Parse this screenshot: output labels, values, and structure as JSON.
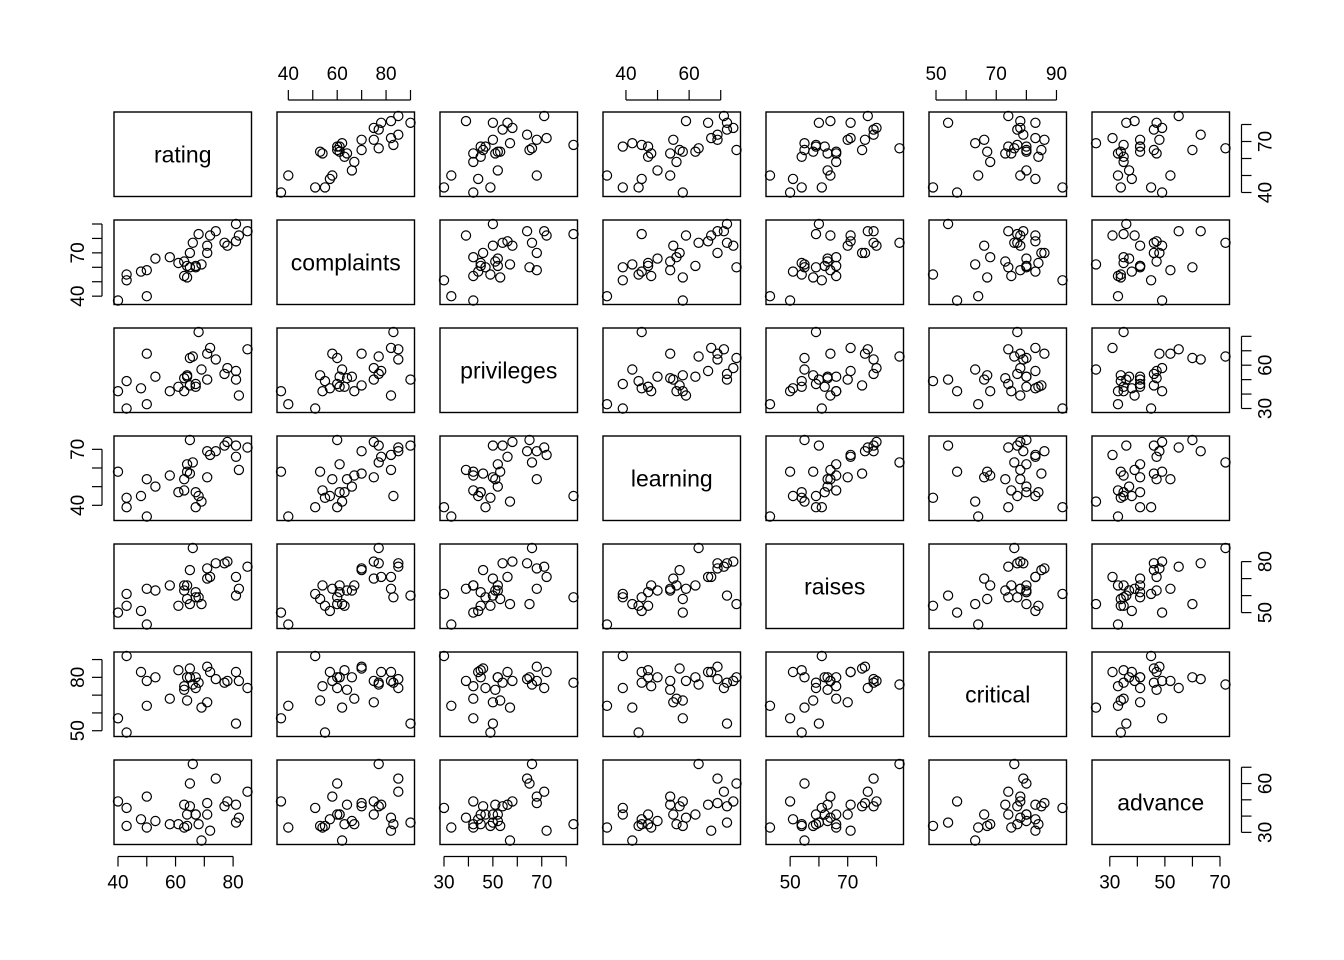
{
  "chart_data": {
    "type": "scatter",
    "variables": [
      "rating",
      "complaints",
      "privileges",
      "learning",
      "raises",
      "critical",
      "advance"
    ],
    "ranges": {
      "rating": [
        40,
        85
      ],
      "complaints": [
        37,
        90
      ],
      "privileges": [
        30,
        83
      ],
      "learning": [
        34,
        75
      ],
      "raises": [
        43,
        88
      ],
      "critical": [
        49,
        92
      ],
      "advance": [
        25,
        72
      ]
    },
    "axis_ticks": {
      "top": {
        "complaints": [
          "40",
          "60",
          "80"
        ],
        "learning": [
          "40",
          "60"
        ],
        "critical": [
          "50",
          "70",
          "90"
        ]
      },
      "bottom": {
        "rating": [
          "40",
          "60",
          "80"
        ],
        "privileges": [
          "30",
          "50",
          "70"
        ],
        "raises": [
          "50",
          "70"
        ],
        "advance": [
          "30",
          "50",
          "70"
        ]
      },
      "left": {
        "complaints": [
          "40",
          "70"
        ],
        "learning": [
          "40",
          "70"
        ],
        "critical": [
          "50",
          "80"
        ]
      },
      "right": {
        "rating": [
          "40",
          "70"
        ],
        "privileges": [
          "30",
          "60"
        ],
        "raises": [
          "50",
          "80"
        ],
        "advance": [
          "30",
          "60"
        ]
      }
    },
    "observations": [
      [
        43,
        51,
        30,
        39,
        61,
        92,
        45
      ],
      [
        63,
        64,
        51,
        54,
        63,
        73,
        47
      ],
      [
        71,
        70,
        68,
        69,
        76,
        86,
        48
      ],
      [
        61,
        63,
        45,
        47,
        54,
        84,
        35
      ],
      [
        81,
        78,
        56,
        66,
        71,
        83,
        47
      ],
      [
        43,
        55,
        49,
        44,
        54,
        49,
        34
      ],
      [
        58,
        67,
        42,
        56,
        66,
        68,
        35
      ],
      [
        71,
        75,
        50,
        55,
        70,
        66,
        41
      ],
      [
        72,
        82,
        72,
        67,
        71,
        83,
        31
      ],
      [
        67,
        61,
        45,
        47,
        62,
        80,
        41
      ],
      [
        64,
        53,
        53,
        58,
        58,
        67,
        34
      ],
      [
        67,
        60,
        47,
        39,
        59,
        74,
        41
      ],
      [
        69,
        62,
        57,
        42,
        55,
        63,
        25
      ],
      [
        68,
        83,
        83,
        45,
        59,
        77,
        35
      ],
      [
        77,
        77,
        54,
        72,
        79,
        77,
        46
      ],
      [
        81,
        90,
        50,
        72,
        60,
        54,
        36
      ],
      [
        74,
        85,
        64,
        69,
        79,
        79,
        63
      ],
      [
        65,
        60,
        65,
        75,
        55,
        80,
        60
      ],
      [
        65,
        70,
        46,
        57,
        75,
        85,
        46
      ],
      [
        50,
        58,
        68,
        54,
        64,
        78,
        52
      ],
      [
        50,
        40,
        33,
        34,
        43,
        64,
        33
      ],
      [
        64,
        61,
        52,
        62,
        66,
        80,
        41
      ],
      [
        53,
        66,
        52,
        50,
        63,
        80,
        37
      ],
      [
        40,
        37,
        42,
        58,
        50,
        57,
        49
      ],
      [
        63,
        54,
        42,
        48,
        66,
        75,
        33
      ],
      [
        66,
        77,
        66,
        63,
        88,
        76,
        72
      ],
      [
        78,
        75,
        58,
        74,
        80,
        78,
        49
      ],
      [
        48,
        57,
        44,
        45,
        51,
        83,
        38
      ],
      [
        85,
        85,
        71,
        71,
        77,
        74,
        55
      ],
      [
        82,
        82,
        39,
        59,
        64,
        78,
        39
      ]
    ]
  }
}
